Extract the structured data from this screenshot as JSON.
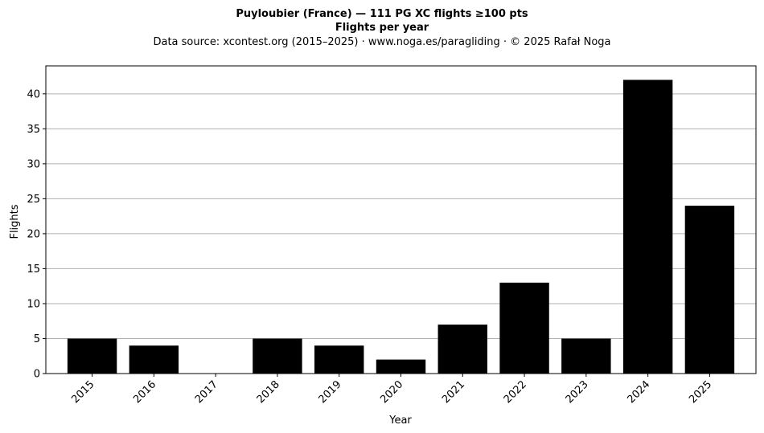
{
  "chart_data": {
    "type": "bar",
    "title": "Puyloubier (France)  —  111 PG XC flights ≥100 pts",
    "subtitle": "Flights per year",
    "source": "Data source: xcontest.org (2015–2025)  ·  www.noga.es/paragliding  ·  © 2025 Rafał Noga",
    "xlabel": "Year",
    "ylabel": "Flights",
    "categories": [
      "2015",
      "2016",
      "2017",
      "2018",
      "2019",
      "2020",
      "2021",
      "2022",
      "2023",
      "2024",
      "2025"
    ],
    "values": [
      5,
      4,
      0,
      5,
      4,
      2,
      7,
      13,
      5,
      42,
      24
    ],
    "ylim": [
      0,
      44
    ],
    "yticks": [
      0,
      5,
      10,
      15,
      20,
      25,
      30,
      35,
      40
    ],
    "grid": "y",
    "bar_color": "#000000",
    "grid_color": "#b0b0b0"
  }
}
